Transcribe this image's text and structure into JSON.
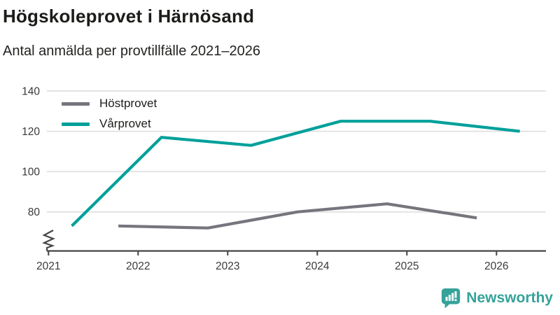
{
  "header": {
    "title": "Högskoleprovet i Härnösand",
    "subtitle": "Antal anmälda per provtillfälle 2021–2026"
  },
  "chart_data": {
    "type": "line",
    "title": "Högskoleprovet i Härnösand",
    "subtitle": "Antal anmälda per provtillfälle 2021–2026",
    "xlabel": "",
    "ylabel": "",
    "x_ticks": [
      2021,
      2022,
      2023,
      2024,
      2025,
      2026
    ],
    "y_ticks": [
      80,
      100,
      120,
      140
    ],
    "ylim": [
      66,
      140
    ],
    "axis_break_at_bottom": true,
    "grid": "horizontal",
    "legend_position": "top-left",
    "series": [
      {
        "name": "Höstprovet",
        "color": "#76757D",
        "x": [
          2021.78,
          2022.78,
          2023.78,
          2024.78,
          2025.78
        ],
        "values": [
          73,
          72,
          80,
          84,
          77
        ]
      },
      {
        "name": "Vårprovet",
        "color": "#00A09A",
        "x": [
          2021.26,
          2022.26,
          2023.26,
          2024.26,
          2025.26,
          2026.26
        ],
        "values": [
          73,
          117,
          113,
          125,
          125,
          120
        ]
      }
    ],
    "colors": {
      "gridline": "#e3e3e3",
      "axis": "#454545",
      "tick_text": "#3a3a3a"
    }
  },
  "branding": {
    "logo_text": "Newsworthy",
    "logo_color": "#35A29A",
    "logo_icon": "bar-chart-speech-bubble-icon"
  }
}
